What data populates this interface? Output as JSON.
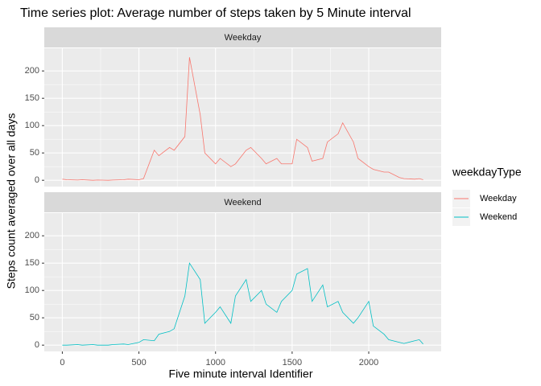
{
  "chart_data": {
    "type": "line",
    "title": "Time series plot: Average number of steps taken by 5 Minute interval",
    "xlabel": "Five minute interval Identifier",
    "ylabel": "Steps count averaged over all days",
    "legend_title": "weekdayType",
    "x": [
      0,
      30,
      100,
      130,
      200,
      230,
      300,
      330,
      400,
      430,
      500,
      530,
      600,
      630,
      700,
      730,
      800,
      830,
      900,
      930,
      1000,
      1030,
      1100,
      1130,
      1200,
      1230,
      1300,
      1330,
      1400,
      1430,
      1500,
      1530,
      1600,
      1630,
      1700,
      1730,
      1800,
      1830,
      1900,
      1930,
      2000,
      2030,
      2100,
      2130,
      2200,
      2230,
      2300,
      2330,
      2355
    ],
    "series": [
      {
        "name": "Weekday",
        "color": "#F8766D",
        "values": [
          2,
          1,
          0.5,
          1,
          0,
          0.5,
          0,
          0.5,
          1,
          2,
          1,
          3,
          55,
          45,
          60,
          55,
          80,
          225,
          120,
          50,
          30,
          40,
          25,
          30,
          55,
          60,
          40,
          30,
          40,
          30,
          30,
          75,
          60,
          35,
          40,
          70,
          85,
          105,
          70,
          40,
          25,
          20,
          15,
          15,
          5,
          3,
          2,
          3,
          1
        ]
      },
      {
        "name": "Weekend",
        "color": "#00BFC4",
        "values": [
          0,
          0,
          1,
          0,
          1,
          0,
          0,
          1,
          2,
          1,
          5,
          10,
          8,
          20,
          25,
          30,
          90,
          150,
          120,
          40,
          60,
          70,
          40,
          90,
          120,
          80,
          100,
          75,
          60,
          80,
          100,
          130,
          140,
          80,
          110,
          70,
          80,
          60,
          40,
          50,
          80,
          35,
          20,
          10,
          5,
          3,
          8,
          10,
          2
        ]
      }
    ],
    "xlim": [
      -117.75,
      2472.75
    ],
    "ylim": [
      -11.5,
      241.5
    ],
    "xticks": [
      0,
      500,
      1000,
      1500,
      2000
    ],
    "yticks": [
      0,
      50,
      100,
      150,
      200
    ],
    "grid": true
  }
}
